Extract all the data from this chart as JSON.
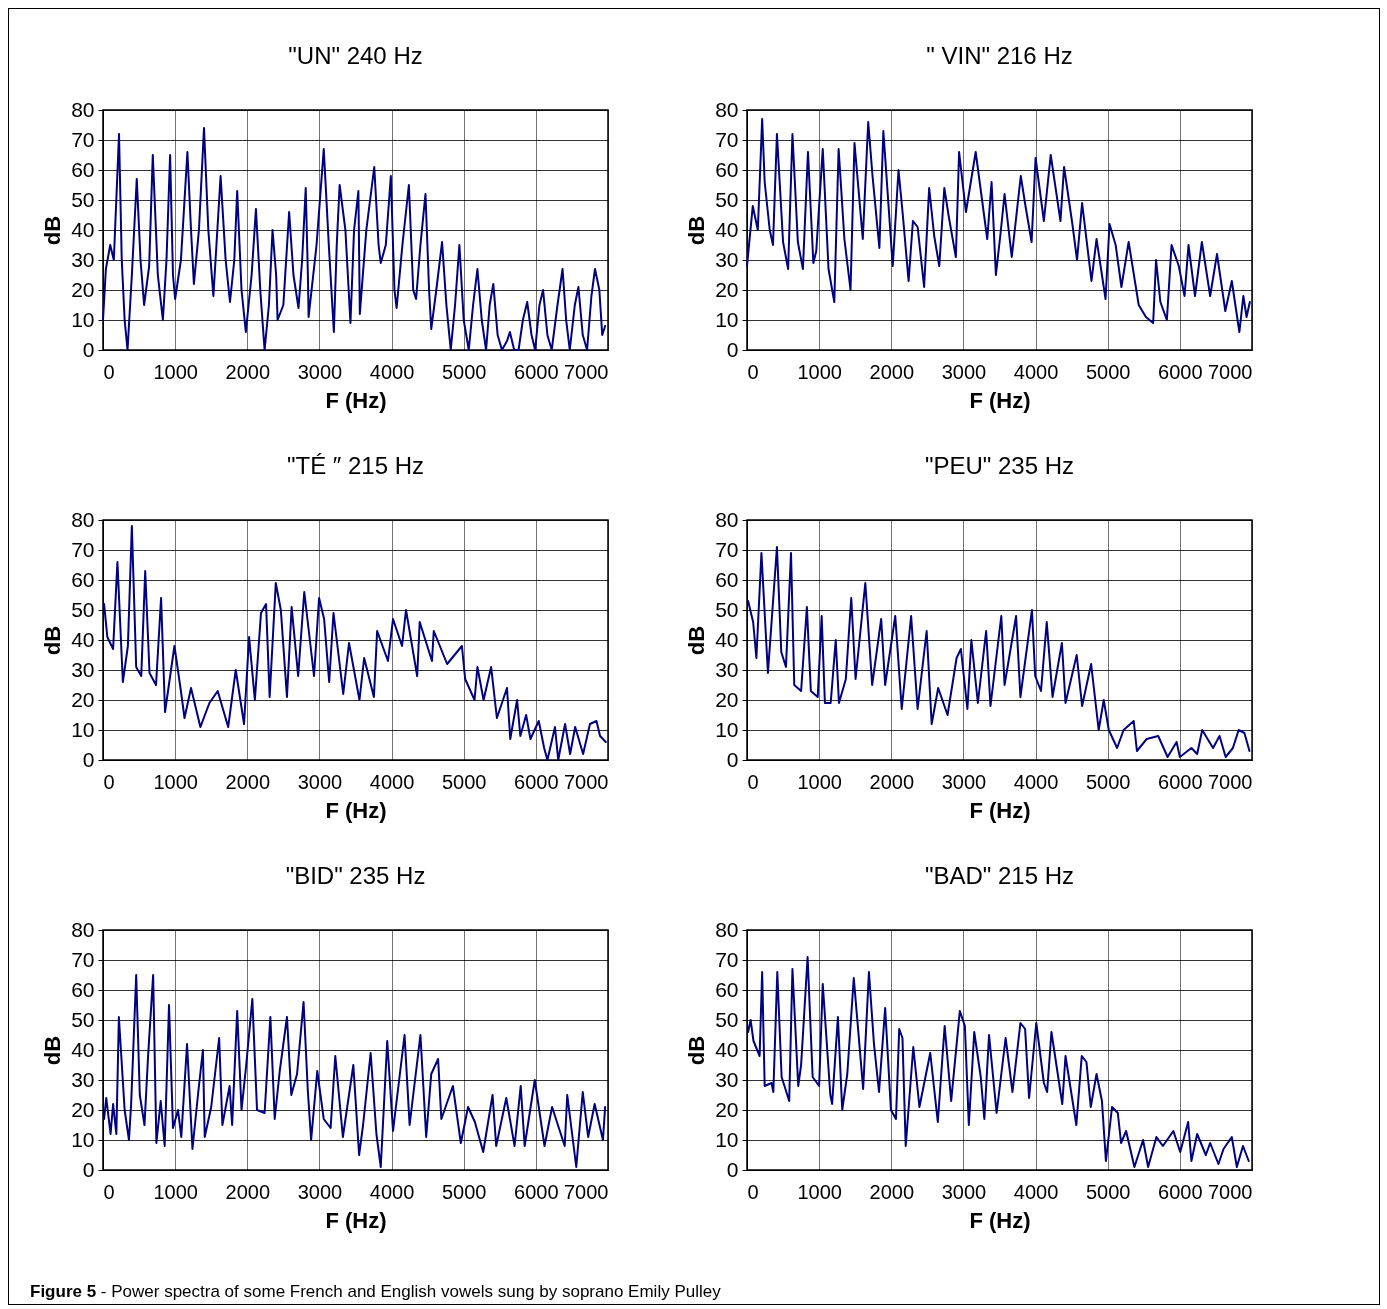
{
  "chart_data": [
    {
      "type": "line",
      "title": "\"UN\" 240 Hz",
      "xlabel": "F (Hz)",
      "ylabel": "dB",
      "xlim": [
        0,
        7000
      ],
      "ylim": [
        0,
        80
      ],
      "xticks": [
        0,
        1000,
        2000,
        3000,
        4000,
        5000,
        6000,
        7000
      ],
      "yticks": [
        0,
        10,
        20,
        30,
        40,
        50,
        60,
        70,
        80
      ],
      "grid": true,
      "line_style": "solid",
      "x": [
        0,
        40,
        100,
        150,
        222,
        260,
        300,
        340,
        400,
        468,
        520,
        570,
        640,
        690,
        760,
        830,
        880,
        930,
        970,
        1000,
        1080,
        1170,
        1220,
        1260,
        1330,
        1400,
        1460,
        1530,
        1580,
        1630,
        1700,
        1760,
        1820,
        1860,
        1920,
        1980,
        2060,
        2120,
        2180,
        2240,
        2300,
        2350,
        2400,
        2420,
        2500,
        2580,
        2640,
        2710,
        2760,
        2810,
        2840,
        2850,
        2960,
        3060,
        3130,
        3200,
        3240,
        3280,
        3360,
        3430,
        3480,
        3540,
        3560,
        3650,
        3760,
        3820,
        3850,
        3920,
        3990,
        4040,
        4070,
        4150,
        4240,
        4300,
        4340,
        4400,
        4470,
        4520,
        4550,
        4620,
        4700,
        4760,
        4820,
        4880,
        4940,
        5000,
        5070,
        5130,
        5190,
        5250,
        5310,
        5360,
        5410,
        5470,
        5530,
        5600,
        5640,
        5700,
        5760,
        5820,
        5880,
        5940,
        5990,
        6050,
        6100,
        6160,
        6220,
        6300,
        6370,
        6420,
        6470,
        6540,
        6590,
        6650,
        6710,
        6770,
        6820,
        6880,
        6920,
        6960
      ],
      "series": [
        {
          "color": "#000080",
          "values": [
            10,
            27,
            35,
            30,
            72,
            30,
            10,
            0,
            25,
            57,
            30,
            15,
            28,
            65,
            25,
            10,
            30,
            65,
            25,
            17,
            30,
            66,
            40,
            22,
            40,
            74,
            40,
            18,
            38,
            58,
            30,
            16,
            30,
            53,
            20,
            6,
            25,
            47,
            20,
            0,
            15,
            40,
            25,
            10,
            15,
            46,
            25,
            14,
            30,
            54,
            25,
            11,
            35,
            67,
            35,
            6,
            35,
            55,
            40,
            9,
            40,
            53,
            12,
            40,
            61,
            35,
            29,
            35,
            58,
            20,
            14,
            35,
            55,
            20,
            17,
            35,
            52,
            20,
            7,
            20,
            36,
            15,
            0,
            15,
            35,
            10,
            0,
            15,
            27,
            10,
            0,
            15,
            22,
            5,
            0,
            3,
            6,
            0,
            0,
            10,
            16,
            5,
            0,
            15,
            20,
            5,
            0,
            15,
            27,
            10,
            0,
            15,
            21,
            5,
            0,
            18,
            27,
            20,
            5,
            8
          ]
        }
      ]
    },
    {
      "type": "line",
      "title": "\" VIN\" 216 Hz",
      "xlabel": "F (Hz)",
      "ylabel": "dB",
      "xlim": [
        0,
        7000
      ],
      "ylim": [
        0,
        80
      ],
      "xticks": [
        0,
        1000,
        2000,
        3000,
        4000,
        5000,
        6000,
        7000
      ],
      "yticks": [
        0,
        10,
        20,
        30,
        40,
        50,
        60,
        70,
        80
      ],
      "grid": true,
      "line_style": "solid",
      "x": [
        0,
        80,
        150,
        210,
        245,
        315,
        360,
        415,
        500,
        570,
        630,
        705,
        775,
        845,
        920,
        960,
        1050,
        1130,
        1210,
        1270,
        1350,
        1435,
        1490,
        1605,
        1680,
        1740,
        1835,
        1890,
        2020,
        2100,
        2160,
        2240,
        2300,
        2365,
        2455,
        2525,
        2595,
        2665,
        2735,
        2800,
        2895,
        2940,
        3035,
        3170,
        3330,
        3390,
        3450,
        3515,
        3570,
        3670,
        3795,
        3860,
        3945,
        4000,
        4115,
        4210,
        4345,
        4395,
        4510,
        4575,
        4645,
        4775,
        4845,
        4970,
        5025,
        5110,
        5190,
        5290,
        5430,
        5530,
        5630,
        5670,
        5730,
        5820,
        5885,
        5985,
        6065,
        6120,
        6210,
        6305,
        6420,
        6515,
        6630,
        6720,
        6825,
        6880,
        6925,
        6970
      ],
      "series": [
        {
          "color": "#000080",
          "values": [
            28,
            48,
            40,
            77,
            56,
            40,
            35,
            72,
            36,
            27,
            72,
            36,
            27,
            66,
            29,
            33,
            67,
            27,
            16,
            67,
            37,
            20,
            69,
            37,
            76,
            58,
            34,
            73,
            28,
            60,
            45,
            23,
            43,
            41,
            21,
            54,
            38,
            28,
            54,
            44,
            31,
            66,
            46,
            66,
            37,
            56,
            25,
            39,
            52,
            31,
            58,
            48,
            36,
            64,
            43,
            65,
            43,
            61,
            42,
            30,
            49,
            23,
            37,
            17,
            42,
            35,
            21,
            36,
            15,
            11,
            9,
            30,
            16,
            10,
            35,
            28,
            18,
            35,
            18,
            36,
            18,
            32,
            13,
            23,
            6,
            18,
            11,
            16
          ]
        }
      ]
    },
    {
      "type": "line",
      "title": "\"TÉ ″ 215 Hz",
      "xlabel": "F (Hz)",
      "ylabel": "dB",
      "xlim": [
        0,
        7000
      ],
      "ylim": [
        0,
        80
      ],
      "xticks": [
        0,
        1000,
        2000,
        3000,
        4000,
        5000,
        6000,
        7000
      ],
      "yticks": [
        0,
        10,
        20,
        30,
        40,
        50,
        60,
        70,
        80
      ],
      "grid": true,
      "line_style": "solid",
      "x": [
        15,
        60,
        140,
        200,
        275,
        345,
        400,
        460,
        530,
        585,
        645,
        735,
        805,
        860,
        990,
        1080,
        1130,
        1220,
        1350,
        1475,
        1590,
        1735,
        1840,
        1955,
        2025,
        2105,
        2190,
        2260,
        2310,
        2395,
        2465,
        2550,
        2615,
        2705,
        2790,
        2925,
        2995,
        3065,
        3135,
        3195,
        3330,
        3410,
        3555,
        3620,
        3755,
        3800,
        3950,
        4020,
        4145,
        4200,
        4355,
        4390,
        4560,
        4585,
        4770,
        4975,
        5020,
        5150,
        5190,
        5275,
        5380,
        5460,
        5600,
        5645,
        5740,
        5785,
        5865,
        5925,
        6040,
        6115,
        6160,
        6265,
        6310,
        6405,
        6475,
        6545,
        6655,
        6750,
        6840,
        6890,
        6970
      ],
      "series": [
        {
          "color": "#000080",
          "values": [
            52,
            41,
            37,
            66,
            26,
            38,
            78,
            31,
            28,
            63,
            29,
            25,
            54,
            16,
            38,
            23,
            14,
            24,
            11,
            19,
            23,
            11,
            30,
            12,
            41,
            20,
            49,
            52,
            21,
            59,
            50,
            21,
            51,
            28,
            56,
            28,
            54,
            47,
            26,
            49,
            22,
            39,
            20,
            34,
            21,
            43,
            33,
            47,
            38,
            50,
            28,
            46,
            33,
            43,
            32,
            38,
            27,
            20,
            31,
            20,
            31,
            14,
            24,
            7,
            20,
            8,
            15,
            7,
            13,
            4,
            0,
            11,
            0,
            12,
            2,
            11,
            2,
            12,
            13,
            8,
            6
          ]
        }
      ]
    },
    {
      "type": "line",
      "title": "\"PEU\" 235 Hz",
      "xlabel": "F (Hz)",
      "ylabel": "dB",
      "xlim": [
        0,
        7000
      ],
      "ylim": [
        0,
        80
      ],
      "xticks": [
        0,
        1000,
        2000,
        3000,
        4000,
        5000,
        6000,
        7000
      ],
      "yticks": [
        0,
        10,
        20,
        30,
        40,
        50,
        60,
        70,
        80
      ],
      "grid": true,
      "line_style": "solid",
      "x": [
        15,
        85,
        130,
        200,
        290,
        415,
        475,
        540,
        610,
        655,
        750,
        830,
        885,
        980,
        1035,
        1080,
        1160,
        1230,
        1275,
        1370,
        1445,
        1505,
        1640,
        1735,
        1860,
        1915,
        2055,
        2145,
        2275,
        2365,
        2490,
        2560,
        2650,
        2780,
        2905,
        2965,
        3055,
        3110,
        3200,
        3315,
        3375,
        3525,
        3570,
        3730,
        3790,
        3950,
        3995,
        4075,
        4155,
        4235,
        4365,
        4415,
        4570,
        4645,
        4770,
        4875,
        4945,
        5015,
        5130,
        5220,
        5360,
        5405,
        5540,
        5700,
        5830,
        5955,
        6000,
        6160,
        6240,
        6310,
        6460,
        6550,
        6635,
        6735,
        6815,
        6895,
        6965
      ],
      "series": [
        {
          "color": "#000080",
          "values": [
            53,
            46,
            34,
            69,
            29,
            71,
            36,
            31,
            69,
            25,
            23,
            51,
            23,
            21,
            48,
            19,
            19,
            40,
            19,
            27,
            54,
            27,
            59,
            25,
            47,
            25,
            48,
            17,
            48,
            17,
            43,
            12,
            24,
            15,
            34,
            37,
            17,
            40,
            19,
            43,
            18,
            48,
            25,
            48,
            21,
            50,
            28,
            23,
            46,
            21,
            39,
            19,
            35,
            18,
            32,
            10,
            20,
            10,
            4,
            10,
            13,
            3,
            7,
            8,
            1,
            6,
            1,
            4,
            2,
            10,
            4,
            8,
            1,
            4,
            10,
            9,
            3
          ]
        }
      ]
    },
    {
      "type": "line",
      "title": "\"BID\" 235 Hz",
      "xlabel": "F (Hz)",
      "ylabel": "dB",
      "xlim": [
        0,
        7000
      ],
      "ylim": [
        0,
        80
      ],
      "xticks": [
        0,
        1000,
        2000,
        3000,
        4000,
        5000,
        6000,
        7000
      ],
      "yticks": [
        0,
        10,
        20,
        30,
        40,
        50,
        60,
        70,
        80
      ],
      "grid": true,
      "line_style": "solid",
      "x": [
        15,
        45,
        105,
        140,
        185,
        220,
        300,
        360,
        390,
        460,
        510,
        575,
        625,
        695,
        740,
        800,
        855,
        915,
        970,
        1040,
        1085,
        1165,
        1240,
        1325,
        1385,
        1410,
        1500,
        1610,
        1655,
        1755,
        1790,
        1860,
        1920,
        1985,
        2070,
        2135,
        2240,
        2320,
        2380,
        2450,
        2550,
        2610,
        2690,
        2780,
        2840,
        2885,
        2970,
        3060,
        3155,
        3220,
        3325,
        3470,
        3550,
        3605,
        3710,
        3790,
        3850,
        3940,
        4020,
        4180,
        4250,
        4400,
        4480,
        4550,
        4645,
        4690,
        4850,
        4960,
        5060,
        5155,
        5270,
        5400,
        5450,
        5590,
        5705,
        5790,
        5845,
        5985,
        6120,
        6225,
        6400,
        6435,
        6560,
        6650,
        6725,
        6815,
        6930,
        6960
      ],
      "series": [
        {
          "color": "#000080",
          "values": [
            17,
            24,
            12,
            22,
            12,
            51,
            20,
            10,
            22,
            65,
            25,
            15,
            38,
            65,
            9,
            23,
            8,
            55,
            14,
            20,
            11,
            42,
            7,
            27,
            40,
            11,
            21,
            44,
            15,
            28,
            15,
            53,
            20,
            35,
            57,
            20,
            19,
            51,
            17,
            33,
            51,
            25,
            32,
            56,
            26,
            10,
            33,
            17,
            14,
            38,
            11,
            35,
            5,
            15,
            39,
            12,
            1,
            43,
            13,
            45,
            15,
            45,
            11,
            32,
            37,
            17,
            28,
            9,
            21,
            16,
            6,
            25,
            8,
            24,
            8,
            28,
            8,
            30,
            8,
            21,
            8,
            25,
            1,
            26,
            11,
            22,
            10,
            21
          ]
        }
      ]
    },
    {
      "type": "line",
      "title": "\"BAD\" 215 Hz",
      "xlabel": "F (Hz)",
      "ylabel": "dB",
      "xlim": [
        0,
        7000
      ],
      "ylim": [
        0,
        80
      ],
      "xticks": [
        0,
        1000,
        2000,
        3000,
        4000,
        5000,
        6000,
        7000
      ],
      "yticks": [
        0,
        10,
        20,
        30,
        40,
        50,
        60,
        70,
        80
      ],
      "grid": true,
      "line_style": "solid",
      "x": [
        15,
        50,
        90,
        175,
        210,
        245,
        340,
        365,
        420,
        480,
        585,
        630,
        710,
        750,
        840,
        910,
        1000,
        1050,
        1155,
        1180,
        1260,
        1320,
        1390,
        1480,
        1610,
        1690,
        1760,
        1830,
        1915,
        1995,
        2065,
        2110,
        2155,
        2200,
        2305,
        2390,
        2540,
        2645,
        2740,
        2830,
        2950,
        3020,
        3075,
        3150,
        3240,
        3290,
        3355,
        3460,
        3585,
        3680,
        3790,
        3855,
        3910,
        4010,
        4115,
        4160,
        4220,
        4370,
        4415,
        4565,
        4640,
        4705,
        4765,
        4845,
        4920,
        4975,
        5060,
        5140,
        5185,
        5255,
        5370,
        5490,
        5560,
        5675,
        5765,
        5910,
        6005,
        6115,
        6160,
        6240,
        6360,
        6420,
        6535,
        6605,
        6720,
        6790,
        6875,
        6955
      ],
      "series": [
        {
          "color": "#000080",
          "values": [
            46,
            50,
            43,
            38,
            66,
            28,
            29,
            26,
            66,
            31,
            23,
            67,
            28,
            35,
            71,
            31,
            28,
            62,
            25,
            22,
            51,
            20,
            32,
            64,
            27,
            66,
            42,
            26,
            54,
            20,
            17,
            47,
            44,
            8,
            41,
            21,
            39,
            16,
            48,
            23,
            53,
            48,
            15,
            46,
            31,
            17,
            45,
            19,
            44,
            26,
            49,
            47,
            24,
            49,
            29,
            26,
            46,
            22,
            38,
            15,
            38,
            36,
            21,
            32,
            23,
            3,
            21,
            19,
            9,
            13,
            1,
            10,
            1,
            11,
            8,
            13,
            6,
            16,
            3,
            12,
            5,
            9,
            2,
            7,
            11,
            1,
            8,
            3
          ]
        }
      ],
      "annotations": [
        "Figure 5 - Power spectra of some French and English vowels sung by soprano Emily Pulley"
      ]
    }
  ]
}
